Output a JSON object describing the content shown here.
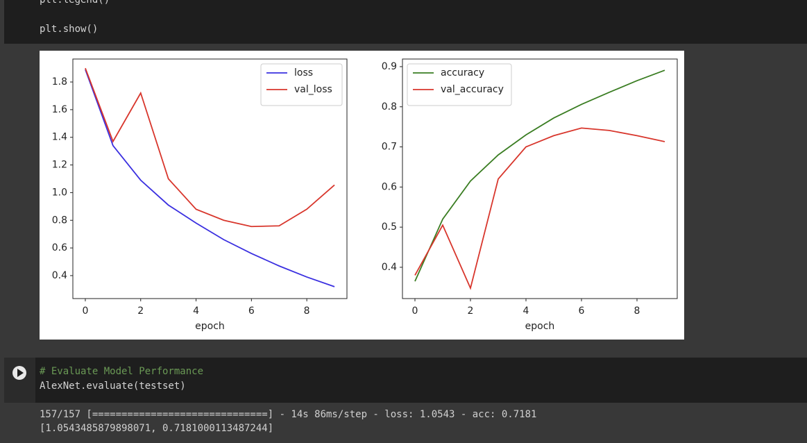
{
  "top_cell": {
    "lines": [
      "plt.legend()",
      "plt.show()"
    ]
  },
  "chart_data": [
    {
      "type": "line",
      "xlabel": "epoch",
      "x": [
        0,
        1,
        2,
        3,
        4,
        5,
        6,
        7,
        8,
        9
      ],
      "series": [
        {
          "name": "loss",
          "color": "#3a2fe0",
          "values": [
            1.89,
            1.34,
            1.09,
            0.91,
            0.78,
            0.66,
            0.56,
            0.47,
            0.39,
            0.32
          ]
        },
        {
          "name": "val_loss",
          "color": "#d8362c",
          "values": [
            1.9,
            1.37,
            1.72,
            1.1,
            0.88,
            0.8,
            0.755,
            0.76,
            0.88,
            1.055
          ]
        }
      ],
      "xlim": [
        -0.45,
        9.45
      ],
      "xticks": [
        0,
        2,
        4,
        6,
        8
      ],
      "ylim": [
        0.234,
        1.966
      ],
      "yticks": [
        0.4,
        0.6,
        0.8,
        {
          "value": 1,
          "label": "1.0"
        },
        1.2,
        1.4,
        1.6,
        1.8
      ],
      "legend": "upper right"
    },
    {
      "type": "line",
      "xlabel": "epoch",
      "x": [
        0,
        1,
        2,
        3,
        4,
        5,
        6,
        7,
        8,
        9
      ],
      "series": [
        {
          "name": "accuracy",
          "color": "#3a7d22",
          "values": [
            0.365,
            0.52,
            0.615,
            0.68,
            0.73,
            0.772,
            0.806,
            0.836,
            0.865,
            0.891
          ]
        },
        {
          "name": "val_accuracy",
          "color": "#d8362c",
          "values": [
            0.38,
            0.505,
            0.348,
            0.62,
            0.7,
            0.728,
            0.747,
            0.741,
            0.728,
            0.713
          ]
        }
      ],
      "xlim": [
        -0.45,
        9.45
      ],
      "xticks": [
        0,
        2,
        4,
        6,
        8
      ],
      "ylim": [
        0.322,
        0.919
      ],
      "yticks": [
        0.4,
        0.5,
        0.6,
        0.7,
        0.8,
        0.9
      ],
      "legend": "upper left"
    }
  ],
  "eval_cell": {
    "lines": [
      "# Evaluate Model Performance",
      "AlexNet.evaluate(testset)"
    ]
  },
  "output": {
    "lines": [
      "157/157 [==============================] - 14s 86ms/step - loss: 1.0543 - acc: 0.7181",
      "[1.0543485879898071, 0.7181000113487244]"
    ]
  }
}
